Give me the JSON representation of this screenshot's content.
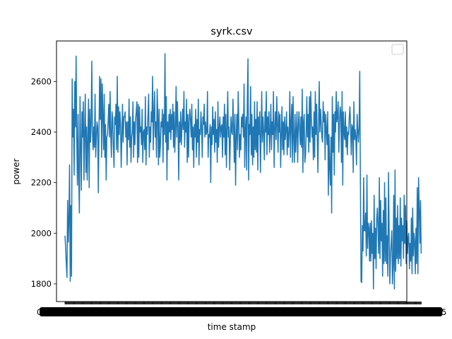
{
  "chart_data": {
    "type": "line",
    "title": "syrk.csv",
    "xlabel": "time stamp",
    "ylabel": "power",
    "ylim": [
      1730,
      2760
    ],
    "yticks": [
      1800,
      2000,
      2200,
      2400,
      2600
    ],
    "xlim": [
      -13,
      523
    ],
    "grid": false,
    "legend": "top-right",
    "x_tick_labels": {
      "first": "0",
      "last": "5"
    },
    "series": [
      {
        "color": "#1f77b4",
        "values": [
          1990,
          1940,
          1880,
          1825,
          2130,
          1965,
          2050,
          2270,
          1810,
          2110,
          1830,
          2610,
          2380,
          2490,
          2230,
          2600,
          2420,
          2700,
          2380,
          2190,
          2470,
          2220,
          2080,
          2540,
          2350,
          2170,
          2480,
          2380,
          2520,
          2210,
          2400,
          2550,
          2240,
          2420,
          2210,
          2380,
          2530,
          2180,
          2490,
          2360,
          2430,
          2680,
          2400,
          2330,
          2420,
          2340,
          2550,
          2300,
          2380,
          2440,
          2420,
          2160,
          2400,
          2620,
          2450,
          2610,
          2300,
          2590,
          2470,
          2330,
          2550,
          2300,
          2430,
          2210,
          2380,
          2390,
          2440,
          2510,
          2380,
          2560,
          2390,
          2300,
          2480,
          2450,
          2340,
          2260,
          2460,
          2430,
          2510,
          2330,
          2620,
          2320,
          2500,
          2390,
          2480,
          2430,
          2260,
          2380,
          2510,
          2360,
          2460,
          2460,
          2480,
          2380,
          2440,
          2270,
          2440,
          2370,
          2530,
          2340,
          2460,
          2280,
          2380,
          2400,
          2520,
          2300,
          2440,
          2350,
          2450,
          2480,
          2520,
          2280,
          2510,
          2300,
          2500,
          2400,
          2420,
          2350,
          2490,
          2280,
          2400,
          2410,
          2330,
          2540,
          2270,
          2420,
          2390,
          2470,
          2550,
          2300,
          2420,
          2360,
          2480,
          2440,
          2620,
          2330,
          2470,
          2560,
          2380,
          2440,
          2300,
          2570,
          2470,
          2270,
          2490,
          2300,
          2350,
          2440,
          2420,
          2490,
          2280,
          2470,
          2390,
          2710,
          2360,
          2540,
          2210,
          2440,
          2330,
          2470,
          2400,
          2490,
          2370,
          2470,
          2410,
          2510,
          2340,
          2480,
          2320,
          2420,
          2580,
          2380,
          2520,
          2420,
          2210,
          2440,
          2360,
          2480,
          2350,
          2420,
          2490,
          2410,
          2560,
          2340,
          2440,
          2400,
          2530,
          2280,
          2470,
          2300,
          2440,
          2490,
          2450,
          2380,
          2510,
          2330,
          2420,
          2260,
          2430,
          2380,
          2490,
          2300,
          2450,
          2360,
          2530,
          2270,
          2410,
          2390,
          2480,
          2420,
          2300,
          2460,
          2430,
          2510,
          2380,
          2440,
          2390,
          2400,
          2560,
          2300,
          2390,
          2380,
          2430,
          2200,
          2420,
          2350,
          2500,
          2390,
          2450,
          2320,
          2480,
          2360,
          2410,
          2280,
          2520,
          2340,
          2410,
          2460,
          2380,
          2420,
          2430,
          2300,
          2460,
          2380,
          2510,
          2310,
          2470,
          2260,
          2420,
          2560,
          2380,
          2420,
          2250,
          2370,
          2460,
          2400,
          2390,
          2530,
          2420,
          2280,
          2470,
          2190,
          2380,
          2470,
          2330,
          2560,
          2440,
          2300,
          2390,
          2330,
          2460,
          2420,
          2470,
          2380,
          2590,
          2260,
          2410,
          2460,
          2250,
          2530,
          2690,
          2210,
          2430,
          2390,
          2580,
          2310,
          2470,
          2270,
          2420,
          2300,
          2520,
          2330,
          2450,
          2320,
          2520,
          2250,
          2460,
          2390,
          2480,
          2240,
          2380,
          2560,
          2360,
          2460,
          2400,
          2290,
          2480,
          2400,
          2560,
          2310,
          2460,
          2390,
          2480,
          2320,
          2400,
          2510,
          2330,
          2440,
          2390,
          2560,
          2260,
          2410,
          2480,
          2370,
          2540,
          2430,
          2320,
          2480,
          2400,
          2470,
          2260,
          2390,
          2500,
          2330,
          2440,
          2310,
          2460,
          2370,
          2410,
          2480,
          2310,
          2420,
          2340,
          2400,
          2560,
          2300,
          2440,
          2510,
          2280,
          2540,
          2380,
          2280,
          2470,
          2320,
          2400,
          2480,
          2280,
          2420,
          2480,
          2410,
          2350,
          2460,
          2340,
          2570,
          2240,
          2440,
          2470,
          2280,
          2310,
          2390,
          2540,
          2380,
          2470,
          2320,
          2540,
          2360,
          2560,
          2450,
          2380,
          2420,
          2290,
          2480,
          2300,
          2560,
          2390,
          2510,
          2380,
          2240,
          2430,
          2600,
          2400,
          2490,
          2440,
          2380,
          2360,
          2520,
          2440,
          2480,
          2290,
          2470,
          2410,
          2350,
          2480,
          2150,
          2390,
          2260,
          2190,
          2380,
          2080,
          2540,
          2320,
          2470,
          2230,
          2480,
          2400,
          2560,
          2440,
          2460,
          2520,
          2320,
          2430,
          2500,
          2480,
          2280,
          2560,
          2190,
          2480,
          2400,
          2370,
          2480,
          2340,
          2420,
          2310,
          2400,
          2390,
          2460,
          2500,
          2420,
          2310,
          2430,
          2420,
          2240,
          2520,
          2370,
          2410,
          2380,
          2270,
          2470,
          2410,
          2360,
          2420,
          2640,
          2210,
          1810,
          1805,
          2030,
          1930,
          2220,
          2010,
          2010,
          2080,
          1910,
          2230,
          1940,
          2040,
          2020,
          1890,
          2040,
          1890,
          2050,
          1920,
          2000,
          1780,
          2150,
          1900,
          2020,
          1860,
          2060,
          2100,
          2020,
          1920,
          2220,
          1900,
          2130,
          1970,
          2040,
          1830,
          2090,
          1880,
          2200,
          1890,
          2140,
          1880,
          1990,
          1830,
          2240,
          2000,
          1800,
          1910,
          1960,
          2010,
          1800,
          1870,
          2150,
          1780,
          2250,
          1850,
          2060,
          1900,
          2110,
          1880,
          2030,
          1900,
          2140,
          1870,
          2060,
          1970,
          2030,
          1900,
          2150,
          1960,
          2110,
          1880,
          2050,
          1920,
          1980,
          2000,
          1860,
          1960,
          1890,
          2060,
          1840,
          2100,
          1910,
          2000,
          1970,
          1840,
          2020,
          1880,
          2180,
          1840,
          2220,
          2100,
          1960,
          2130,
          1920
        ]
      }
    ]
  }
}
